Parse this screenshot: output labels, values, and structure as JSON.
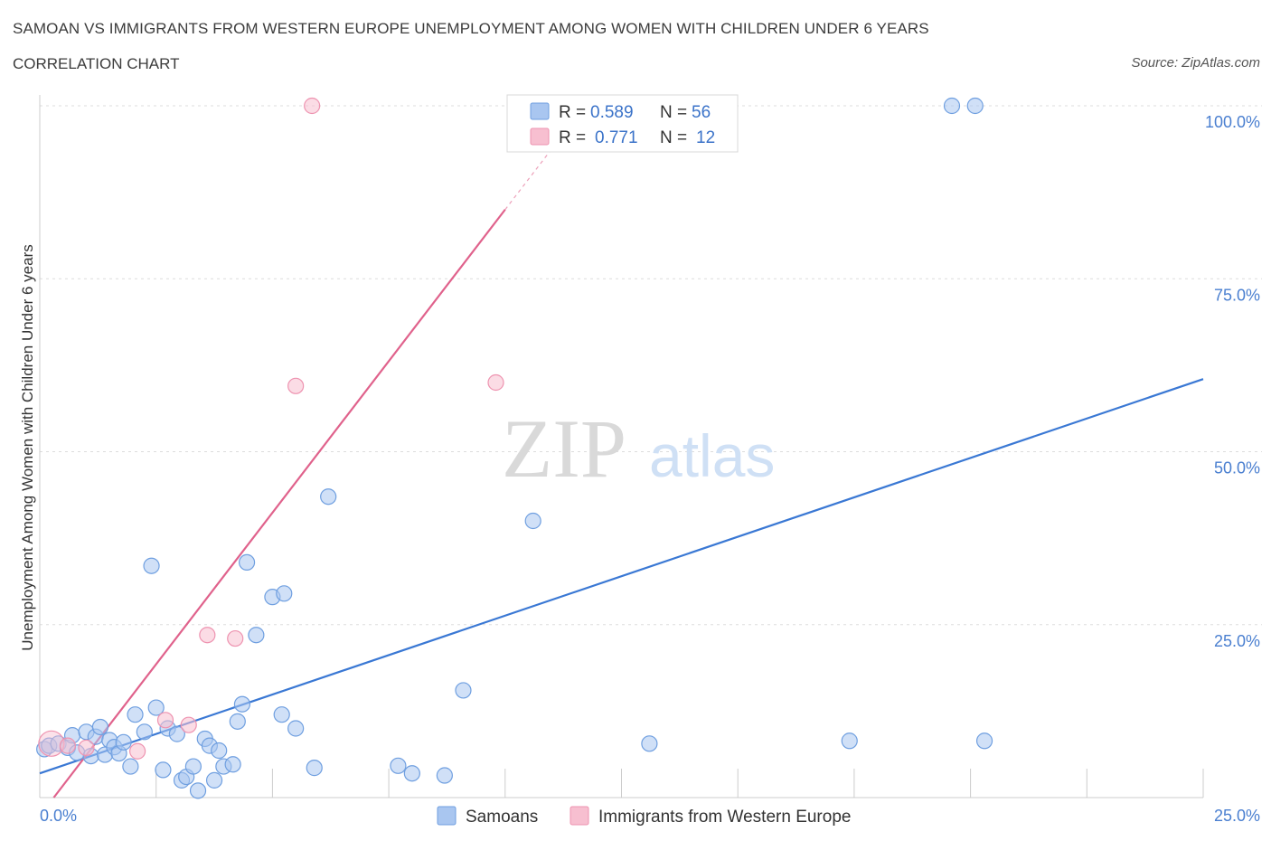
{
  "header": {
    "title": "SAMOAN VS IMMIGRANTS FROM WESTERN EUROPE UNEMPLOYMENT AMONG WOMEN WITH CHILDREN UNDER 6 YEARS",
    "subtitle": "CORRELATION CHART",
    "source": "Source: ZipAtlas.com"
  },
  "watermark": {
    "zip": "ZIP",
    "atlas": "atlas"
  },
  "colors": {
    "samoans_fill": "#a9c6f0",
    "samoans_stroke": "#6f9fe0",
    "samoans_line": "#3a78d4",
    "immigrants_fill": "#f7bfd0",
    "immigrants_stroke": "#ee93b0",
    "immigrants_line": "#e0628c",
    "tick_color": "#4a7fd0",
    "grid": "#dddddd"
  },
  "stats_box": {
    "rows": [
      {
        "r_label": "R =",
        "r_value": "0.589",
        "n_label": "N =",
        "n_value": "56"
      },
      {
        "r_label": "R =",
        "r_value": "0.771",
        "n_label": "N =",
        "n_value": "12"
      }
    ]
  },
  "chart_data": {
    "type": "scatter",
    "title": "SAMOAN VS IMMIGRANTS FROM WESTERN EUROPE UNEMPLOYMENT AMONG WOMEN WITH CHILDREN UNDER 6 YEARS",
    "xlabel": "",
    "ylabel": "Unemployment Among Women with Children Under 6 years",
    "xlim": [
      0,
      25
    ],
    "ylim": [
      0,
      100
    ],
    "x_tick_labels": [
      "0.0%",
      "25.0%"
    ],
    "y_tick_labels": [
      {
        "value": 25,
        "label": "25.0%"
      },
      {
        "value": 50,
        "label": "50.0%"
      },
      {
        "value": 75,
        "label": "75.0%"
      },
      {
        "value": 100,
        "label": "100.0%"
      }
    ],
    "legend": [
      "Samoans",
      "Immigrants from Western Europe"
    ],
    "series": [
      {
        "name": "Samoans",
        "R": 0.589,
        "N": 56,
        "trend": {
          "x0": 0,
          "y0": 3.5,
          "x1": 25,
          "y1": 60.5
        },
        "points": [
          [
            0.1,
            7
          ],
          [
            0.2,
            7.5
          ],
          [
            0.4,
            7.8
          ],
          [
            0.6,
            7.2
          ],
          [
            0.7,
            9
          ],
          [
            0.8,
            6.5
          ],
          [
            1.0,
            9.5
          ],
          [
            1.1,
            6
          ],
          [
            1.2,
            8.8
          ],
          [
            1.3,
            10.2
          ],
          [
            1.4,
            6.2
          ],
          [
            1.5,
            8.3
          ],
          [
            1.6,
            7.3
          ],
          [
            1.7,
            6.4
          ],
          [
            1.8,
            8
          ],
          [
            1.95,
            4.5
          ],
          [
            2.05,
            12
          ],
          [
            2.25,
            9.5
          ],
          [
            2.4,
            33.5
          ],
          [
            2.5,
            13
          ],
          [
            2.65,
            4
          ],
          [
            2.75,
            10
          ],
          [
            2.95,
            9.2
          ],
          [
            3.05,
            2.5
          ],
          [
            3.15,
            3
          ],
          [
            3.3,
            4.5
          ],
          [
            3.4,
            1
          ],
          [
            3.55,
            8.5
          ],
          [
            3.65,
            7.5
          ],
          [
            3.75,
            2.5
          ],
          [
            3.85,
            6.8
          ],
          [
            3.95,
            4.5
          ],
          [
            4.15,
            4.8
          ],
          [
            4.25,
            11
          ],
          [
            4.35,
            13.5
          ],
          [
            4.45,
            34
          ],
          [
            4.65,
            23.5
          ],
          [
            5.0,
            29
          ],
          [
            5.25,
            29.5
          ],
          [
            5.2,
            12
          ],
          [
            5.5,
            10
          ],
          [
            5.9,
            4.3
          ],
          [
            6.2,
            43.5
          ],
          [
            7.7,
            4.6
          ],
          [
            8.0,
            3.5
          ],
          [
            8.7,
            3.2
          ],
          [
            9.1,
            15.5
          ],
          [
            10.6,
            40
          ],
          [
            13.1,
            7.8
          ],
          [
            17.4,
            8.2
          ],
          [
            19.6,
            100
          ],
          [
            20.1,
            100
          ],
          [
            20.3,
            8.2
          ]
        ]
      },
      {
        "name": "Immigrants from Western Europe",
        "R": 0.771,
        "N": 12,
        "trend": {
          "x0": 0.3,
          "y0": 0,
          "x1": 10,
          "y1": 85
        },
        "trend_dashed": {
          "x0": 10,
          "y0": 85,
          "x1": 11.2,
          "y1": 95.5
        },
        "points": [
          [
            0.2,
            7.8
          ],
          [
            0.6,
            7.5
          ],
          [
            1.0,
            7.2
          ],
          [
            2.1,
            6.7
          ],
          [
            2.7,
            11.2
          ],
          [
            3.2,
            10.5
          ],
          [
            3.6,
            23.5
          ],
          [
            4.2,
            23
          ],
          [
            5.5,
            59.5
          ],
          [
            5.85,
            100
          ],
          [
            9.8,
            60
          ]
        ]
      }
    ]
  }
}
